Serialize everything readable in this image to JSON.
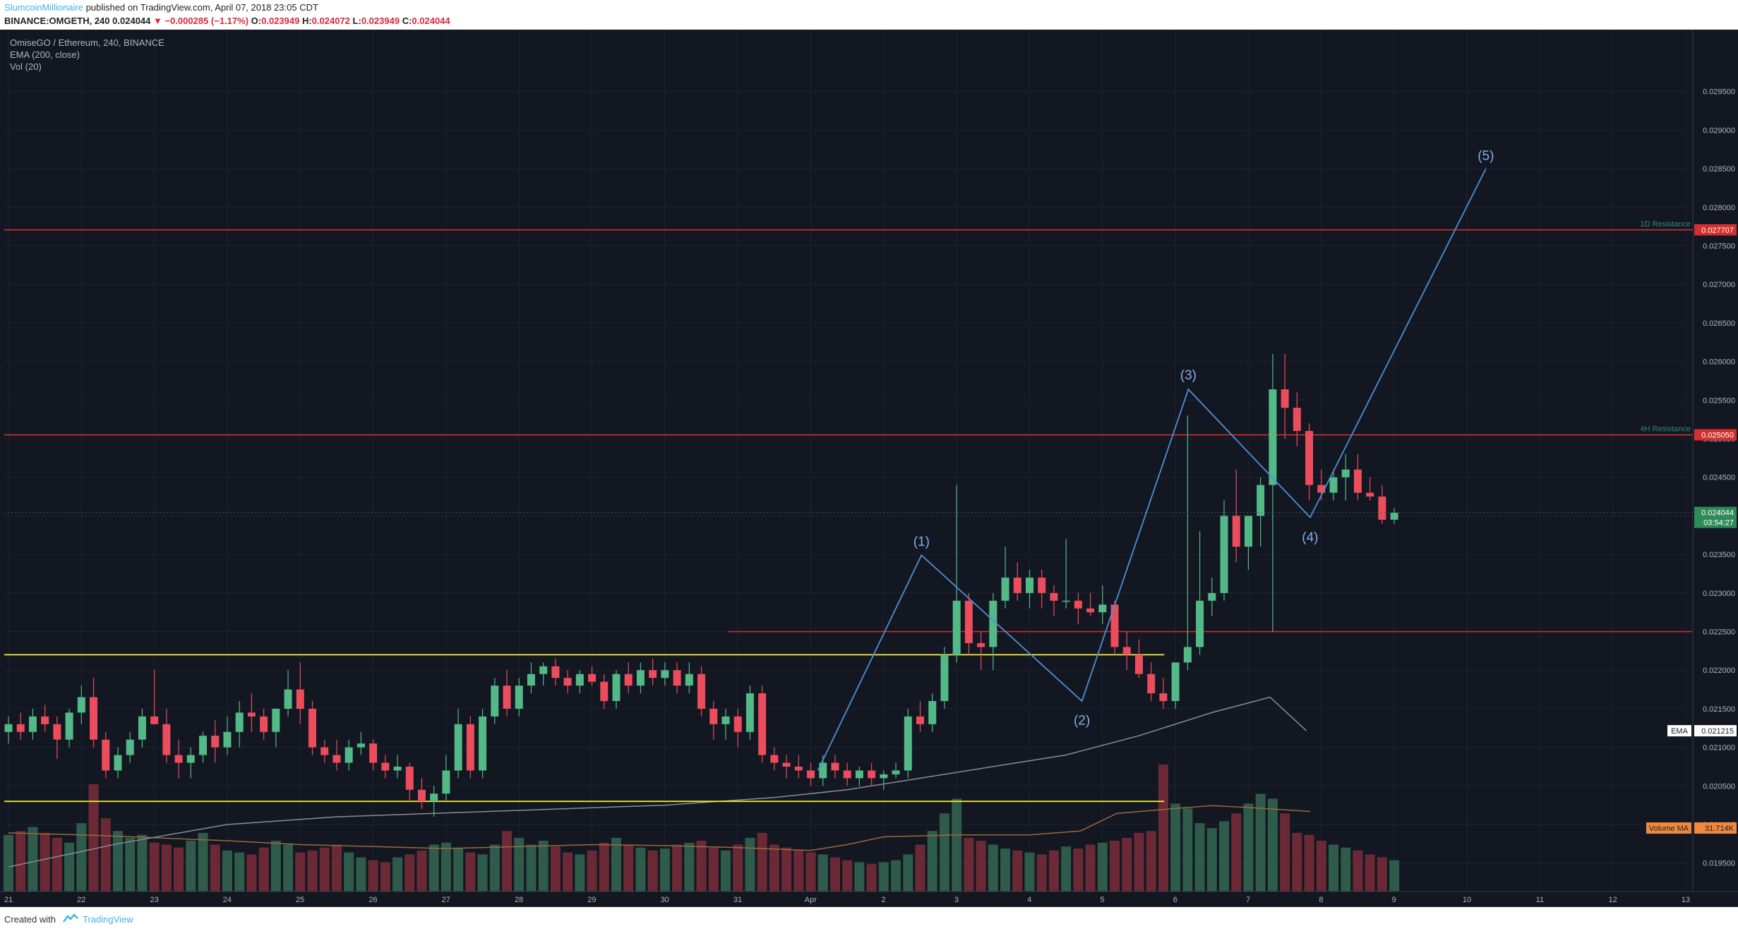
{
  "header": {
    "author": "SlumcoinMillionaire",
    "published": "published on TradingView.com, April 07, 2018 23:05 CDT",
    "symbol_line_prefix": "BINANCE:OMGETH, 240",
    "last": "0.024044",
    "change": "▼ −0.000285 (−1.17%)",
    "o_label": "O:",
    "o": "0.023949",
    "h_label": "H:",
    "h": "0.024072",
    "l_label": "L:",
    "l": "0.023949",
    "c_label": "C:",
    "c": "0.024044"
  },
  "legend": {
    "title": "OmiseGO / Ethereum, 240, BINANCE",
    "ema": "EMA (200, close)",
    "vol": "Vol (20)"
  },
  "footer": {
    "created_with": "Created with",
    "brand": "TradingView"
  },
  "colors": {
    "background": "#131722",
    "up": "#53b987",
    "down": "#eb4d5c",
    "up_vol": "#2e5b4a",
    "down_vol": "#6b2936",
    "wave": "#4e8fd6",
    "resistance": "#d32f2f",
    "support": "#e8e33a",
    "grid": "#1e2330",
    "axis_text": "#b2b5be"
  },
  "chart_data": {
    "type": "candlestick",
    "symbol": "OMGETH",
    "timeframe": "240",
    "exchange": "BINANCE",
    "ylim": [
      0.0187,
      0.0298
    ],
    "price_ticks": [
      "0.029500",
      "0.029000",
      "0.028500",
      "0.028000",
      "0.027500",
      "0.027000",
      "0.026500",
      "0.026000",
      "0.025500",
      "0.025000",
      "0.024500",
      "0.024000",
      "0.023500",
      "0.023000",
      "0.022500",
      "0.022000",
      "0.021500",
      "0.021000",
      "0.020500",
      "0.020000",
      "0.019500",
      "0.019000"
    ],
    "date_labels": [
      "21",
      "22",
      "23",
      "24",
      "25",
      "26",
      "27",
      "28",
      "29",
      "30",
      "31",
      "Apr",
      "2",
      "3",
      "4",
      "5",
      "6",
      "7",
      "8",
      "9",
      "10",
      "11",
      "12",
      "13"
    ],
    "horizontal_levels": [
      {
        "label": "1D Resistance",
        "price": 0.027707,
        "tag": "0.027707"
      },
      {
        "label": "4H Resistance",
        "price": 0.02505,
        "tag": "0.025050"
      },
      {
        "label": "",
        "price": 0.0225,
        "tag": ""
      }
    ],
    "support_lines": [
      {
        "from_day": 0.0,
        "to_day": 15.85,
        "price": 0.0222
      },
      {
        "from_day": 0.0,
        "to_day": 15.85,
        "price": 0.0203
      }
    ],
    "price_tag": {
      "value": "0.024044",
      "countdown": "03:54:27"
    },
    "ema_tag": {
      "label": "EMA",
      "value": "0.021215"
    },
    "volume_ma_tag": {
      "label": "Volume MA",
      "value": "31.714K"
    },
    "wave_labels": [
      {
        "label": "(1)",
        "day": 12.52,
        "price": 0.0235
      },
      {
        "label": "(2)",
        "day": 14.72,
        "price": 0.02155
      },
      {
        "label": "(3)",
        "day": 16.18,
        "price": 0.02566
      },
      {
        "label": "(4)",
        "day": 17.85,
        "price": 0.02392
      },
      {
        "label": "(5)",
        "day": 20.26,
        "price": 0.0285
      }
    ],
    "candles_start_day": 0.0,
    "candle_step_days": 0.1667,
    "candles": [
      [
        0.0212,
        0.0214,
        0.02105,
        0.0213
      ],
      [
        0.0213,
        0.02145,
        0.0211,
        0.0212
      ],
      [
        0.0212,
        0.0215,
        0.0211,
        0.0214
      ],
      [
        0.0214,
        0.02155,
        0.0212,
        0.0213
      ],
      [
        0.0213,
        0.0214,
        0.02085,
        0.0211
      ],
      [
        0.0211,
        0.0215,
        0.021,
        0.02145
      ],
      [
        0.02145,
        0.0218,
        0.0213,
        0.02165
      ],
      [
        0.02165,
        0.0219,
        0.021,
        0.0211
      ],
      [
        0.0211,
        0.0212,
        0.0206,
        0.0207
      ],
      [
        0.0207,
        0.021,
        0.0206,
        0.0209
      ],
      [
        0.0209,
        0.0212,
        0.0208,
        0.0211
      ],
      [
        0.0211,
        0.0215,
        0.021,
        0.0214
      ],
      [
        0.0214,
        0.022,
        0.0213,
        0.0213
      ],
      [
        0.0213,
        0.0215,
        0.0208,
        0.0209
      ],
      [
        0.0209,
        0.0211,
        0.0206,
        0.0208
      ],
      [
        0.0208,
        0.021,
        0.0206,
        0.0209
      ],
      [
        0.0209,
        0.0212,
        0.0208,
        0.02115
      ],
      [
        0.02115,
        0.02135,
        0.0208,
        0.021
      ],
      [
        0.021,
        0.0214,
        0.0209,
        0.0212
      ],
      [
        0.0212,
        0.0216,
        0.021,
        0.02145
      ],
      [
        0.02145,
        0.0217,
        0.0212,
        0.0214
      ],
      [
        0.0214,
        0.0215,
        0.0211,
        0.0212
      ],
      [
        0.0212,
        0.0215,
        0.021,
        0.0215
      ],
      [
        0.0215,
        0.022,
        0.0214,
        0.02175
      ],
      [
        0.02175,
        0.0221,
        0.0213,
        0.0215
      ],
      [
        0.0215,
        0.0216,
        0.0209,
        0.021
      ],
      [
        0.021,
        0.0211,
        0.0208,
        0.0209
      ],
      [
        0.0209,
        0.0211,
        0.0207,
        0.0208
      ],
      [
        0.0208,
        0.0211,
        0.0207,
        0.021
      ],
      [
        0.021,
        0.0212,
        0.0209,
        0.02105
      ],
      [
        0.02105,
        0.0211,
        0.0207,
        0.0208
      ],
      [
        0.0208,
        0.0209,
        0.0206,
        0.0207
      ],
      [
        0.0207,
        0.0209,
        0.0206,
        0.02075
      ],
      [
        0.02075,
        0.0208,
        0.0203,
        0.02045
      ],
      [
        0.02045,
        0.0206,
        0.0202,
        0.0203
      ],
      [
        0.0203,
        0.0205,
        0.0201,
        0.0204
      ],
      [
        0.0204,
        0.0209,
        0.0203,
        0.0207
      ],
      [
        0.0207,
        0.0215,
        0.0206,
        0.0213
      ],
      [
        0.0213,
        0.0214,
        0.0206,
        0.0207
      ],
      [
        0.0207,
        0.0215,
        0.0206,
        0.0214
      ],
      [
        0.0214,
        0.0219,
        0.0213,
        0.0218
      ],
      [
        0.0218,
        0.022,
        0.0214,
        0.0215
      ],
      [
        0.0215,
        0.0219,
        0.0214,
        0.0218
      ],
      [
        0.0218,
        0.0221,
        0.0217,
        0.02195
      ],
      [
        0.02195,
        0.0221,
        0.0218,
        0.02205
      ],
      [
        0.02205,
        0.02215,
        0.0218,
        0.0219
      ],
      [
        0.0219,
        0.022,
        0.0217,
        0.0218
      ],
      [
        0.0218,
        0.022,
        0.0217,
        0.02195
      ],
      [
        0.02195,
        0.02205,
        0.0218,
        0.02185
      ],
      [
        0.02185,
        0.02195,
        0.0215,
        0.0216
      ],
      [
        0.0216,
        0.022,
        0.0215,
        0.02195
      ],
      [
        0.02195,
        0.0221,
        0.0217,
        0.0218
      ],
      [
        0.0218,
        0.0221,
        0.0217,
        0.022
      ],
      [
        0.022,
        0.02215,
        0.0218,
        0.0219
      ],
      [
        0.0219,
        0.0221,
        0.0218,
        0.022
      ],
      [
        0.022,
        0.0221,
        0.0217,
        0.0218
      ],
      [
        0.0218,
        0.0221,
        0.0217,
        0.02195
      ],
      [
        0.02195,
        0.02205,
        0.0214,
        0.0215
      ],
      [
        0.0215,
        0.0216,
        0.0211,
        0.0213
      ],
      [
        0.0213,
        0.0215,
        0.0211,
        0.0214
      ],
      [
        0.0214,
        0.0215,
        0.021,
        0.0212
      ],
      [
        0.0212,
        0.0218,
        0.0211,
        0.0217
      ],
      [
        0.0217,
        0.0218,
        0.0208,
        0.0209
      ],
      [
        0.0209,
        0.021,
        0.0207,
        0.0208
      ],
      [
        0.0208,
        0.0209,
        0.0206,
        0.02075
      ],
      [
        0.02075,
        0.0209,
        0.0206,
        0.0207
      ],
      [
        0.0207,
        0.0208,
        0.0205,
        0.0206
      ],
      [
        0.0206,
        0.0209,
        0.0205,
        0.0208
      ],
      [
        0.0208,
        0.0209,
        0.0206,
        0.0207
      ],
      [
        0.0207,
        0.0208,
        0.0205,
        0.0206
      ],
      [
        0.0206,
        0.02075,
        0.0205,
        0.0207
      ],
      [
        0.0207,
        0.0208,
        0.0205,
        0.0206
      ],
      [
        0.0206,
        0.0207,
        0.02045,
        0.02065
      ],
      [
        0.02065,
        0.0208,
        0.0206,
        0.0207
      ],
      [
        0.0207,
        0.0215,
        0.0206,
        0.0214
      ],
      [
        0.0214,
        0.0216,
        0.0212,
        0.0213
      ],
      [
        0.0213,
        0.0217,
        0.0212,
        0.0216
      ],
      [
        0.0216,
        0.0223,
        0.0215,
        0.0222
      ],
      [
        0.0222,
        0.0244,
        0.0221,
        0.0229
      ],
      [
        0.0229,
        0.023,
        0.0222,
        0.02235
      ],
      [
        0.02235,
        0.0225,
        0.022,
        0.0223
      ],
      [
        0.0223,
        0.023,
        0.022,
        0.0229
      ],
      [
        0.0229,
        0.0236,
        0.0228,
        0.0232
      ],
      [
        0.0232,
        0.0234,
        0.0229,
        0.023
      ],
      [
        0.023,
        0.0233,
        0.0228,
        0.0232
      ],
      [
        0.0232,
        0.0233,
        0.0228,
        0.023
      ],
      [
        0.023,
        0.0231,
        0.0227,
        0.0229
      ],
      [
        0.0229,
        0.0237,
        0.0228,
        0.0229
      ],
      [
        0.0229,
        0.023,
        0.0226,
        0.0228
      ],
      [
        0.0228,
        0.023,
        0.0227,
        0.02275
      ],
      [
        0.02275,
        0.0231,
        0.0226,
        0.02285
      ],
      [
        0.02285,
        0.0229,
        0.0222,
        0.0223
      ],
      [
        0.0223,
        0.0225,
        0.022,
        0.0222
      ],
      [
        0.0222,
        0.0224,
        0.0219,
        0.02195
      ],
      [
        0.02195,
        0.0221,
        0.0216,
        0.0217
      ],
      [
        0.0217,
        0.0219,
        0.0215,
        0.0216
      ],
      [
        0.0216,
        0.0221,
        0.0215,
        0.0221
      ],
      [
        0.0221,
        0.0253,
        0.022,
        0.0223
      ],
      [
        0.0223,
        0.0238,
        0.0222,
        0.0229
      ],
      [
        0.0229,
        0.0232,
        0.0227,
        0.023
      ],
      [
        0.023,
        0.0242,
        0.0229,
        0.024
      ],
      [
        0.024,
        0.0246,
        0.0234,
        0.0236
      ],
      [
        0.0236,
        0.024,
        0.0233,
        0.024
      ],
      [
        0.024,
        0.0245,
        0.0236,
        0.0244
      ],
      [
        0.0244,
        0.0261,
        0.0225,
        0.02564
      ],
      [
        0.02564,
        0.0261,
        0.025,
        0.0254
      ],
      [
        0.0254,
        0.0256,
        0.0249,
        0.0251
      ],
      [
        0.0251,
        0.0252,
        0.0242,
        0.0244
      ],
      [
        0.0244,
        0.0246,
        0.0242,
        0.0243
      ],
      [
        0.0243,
        0.0246,
        0.0242,
        0.0245
      ],
      [
        0.0245,
        0.0248,
        0.0242,
        0.0246
      ],
      [
        0.0246,
        0.0248,
        0.0242,
        0.0243
      ],
      [
        0.0243,
        0.0245,
        0.0242,
        0.02425
      ],
      [
        0.02425,
        0.0244,
        0.0239,
        0.02395
      ],
      [
        0.02395,
        0.0241,
        0.0239,
        0.02404
      ]
    ],
    "volume_ylim": [
      0,
      130
    ],
    "volumes": [
      58,
      62,
      66,
      60,
      55,
      50,
      70,
      110,
      75,
      62,
      55,
      58,
      50,
      48,
      45,
      52,
      60,
      48,
      42,
      40,
      38,
      45,
      52,
      48,
      40,
      42,
      45,
      48,
      40,
      35,
      32,
      30,
      35,
      38,
      42,
      48,
      50,
      45,
      40,
      38,
      48,
      62,
      55,
      48,
      52,
      46,
      40,
      38,
      42,
      50,
      55,
      48,
      45,
      42,
      44,
      48,
      50,
      52,
      45,
      42,
      48,
      55,
      60,
      48,
      45,
      42,
      40,
      38,
      35,
      32,
      30,
      28,
      30,
      32,
      38,
      48,
      62,
      80,
      95,
      55,
      52,
      48,
      44,
      42,
      40,
      38,
      42,
      46,
      44,
      48,
      50,
      52,
      55,
      60,
      62,
      130,
      90,
      85,
      70,
      65,
      72,
      80,
      90,
      100,
      95,
      80,
      60,
      58,
      52,
      48,
      45,
      42,
      38,
      35,
      32
    ],
    "ema": [
      [
        0.0,
        0.01945
      ],
      [
        1.5,
        0.01975
      ],
      [
        3.0,
        0.02
      ],
      [
        4.5,
        0.0201
      ],
      [
        6.0,
        0.02015
      ],
      [
        7.5,
        0.0202
      ],
      [
        9.0,
        0.02025
      ],
      [
        10.5,
        0.02035
      ],
      [
        11.5,
        0.02045
      ],
      [
        12.5,
        0.0206
      ],
      [
        13.5,
        0.02075
      ],
      [
        14.5,
        0.0209
      ],
      [
        15.5,
        0.02115
      ],
      [
        16.5,
        0.02145
      ],
      [
        17.3,
        0.02165
      ],
      [
        17.8,
        0.021215
      ]
    ],
    "vol_ma": [
      [
        0.0,
        60
      ],
      [
        1.0,
        58
      ],
      [
        2.0,
        55
      ],
      [
        3.0,
        52
      ],
      [
        4.0,
        48
      ],
      [
        5.0,
        46
      ],
      [
        6.0,
        44
      ],
      [
        7.0,
        46
      ],
      [
        8.0,
        48
      ],
      [
        9.0,
        47
      ],
      [
        10.0,
        45
      ],
      [
        11.0,
        42
      ],
      [
        11.5,
        48
      ],
      [
        12.0,
        56
      ],
      [
        13.0,
        58
      ],
      [
        14.0,
        58
      ],
      [
        14.7,
        62
      ],
      [
        15.2,
        80
      ],
      [
        16.0,
        85
      ],
      [
        16.5,
        88
      ],
      [
        17.0,
        86
      ],
      [
        17.85,
        82
      ]
    ]
  }
}
